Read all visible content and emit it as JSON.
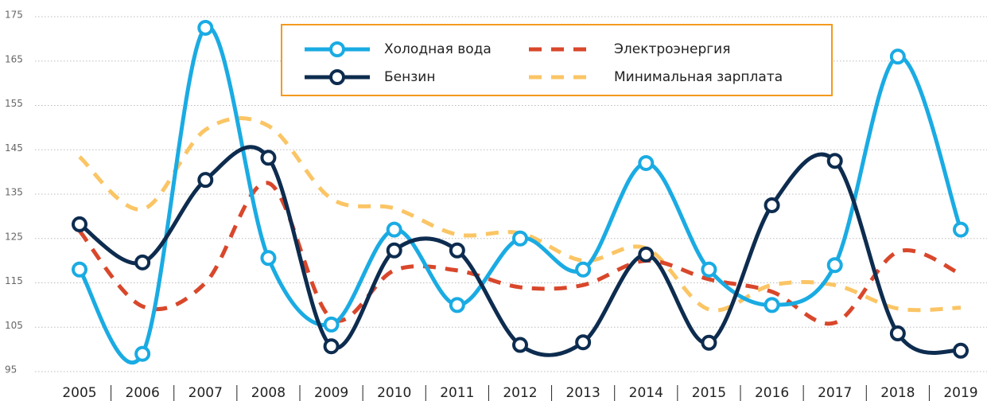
{
  "chart_data": {
    "type": "line",
    "categories": [
      "2005",
      "2006",
      "2007",
      "2008",
      "2009",
      "2010",
      "2011",
      "2012",
      "2013",
      "2014",
      "2015",
      "2016",
      "2017",
      "2018",
      "2019"
    ],
    "ylim": [
      95,
      175
    ],
    "yticks": [
      95,
      105,
      115,
      125,
      135,
      145,
      155,
      165,
      175
    ],
    "grid": true,
    "series": [
      {
        "name": "Холодная вода",
        "color": "#1aabe3",
        "dashed": false,
        "markers": true,
        "values": [
          118,
          99,
          172.5,
          120.6,
          105.6,
          127,
          110,
          125,
          118,
          142,
          118,
          110,
          119,
          166,
          127
        ]
      },
      {
        "name": "Электроэнергия",
        "color": "#d9472b",
        "dashed": true,
        "markers": false,
        "values": [
          126.7,
          109.7,
          115,
          137.5,
          107,
          117.8,
          117.8,
          114,
          114.5,
          120,
          115.8,
          113,
          106,
          122,
          117
        ]
      },
      {
        "name": "Бензин",
        "color": "#0d2c4f",
        "dashed": false,
        "markers": true,
        "values": [
          128.2,
          119.6,
          138.2,
          143.2,
          100.7,
          122.3,
          122.3,
          101,
          101.6,
          121.4,
          101.5,
          132.5,
          142.5,
          103.6,
          99.7
        ]
      },
      {
        "name": "Минимальная зарплата",
        "color": "#fbc565",
        "dashed": true,
        "markers": false,
        "values": [
          143.4,
          131.6,
          149.5,
          150.4,
          134,
          131.8,
          125.9,
          126.2,
          120,
          122.8,
          109,
          114.5,
          114.5,
          109.2,
          109.4
        ]
      }
    ]
  }
}
